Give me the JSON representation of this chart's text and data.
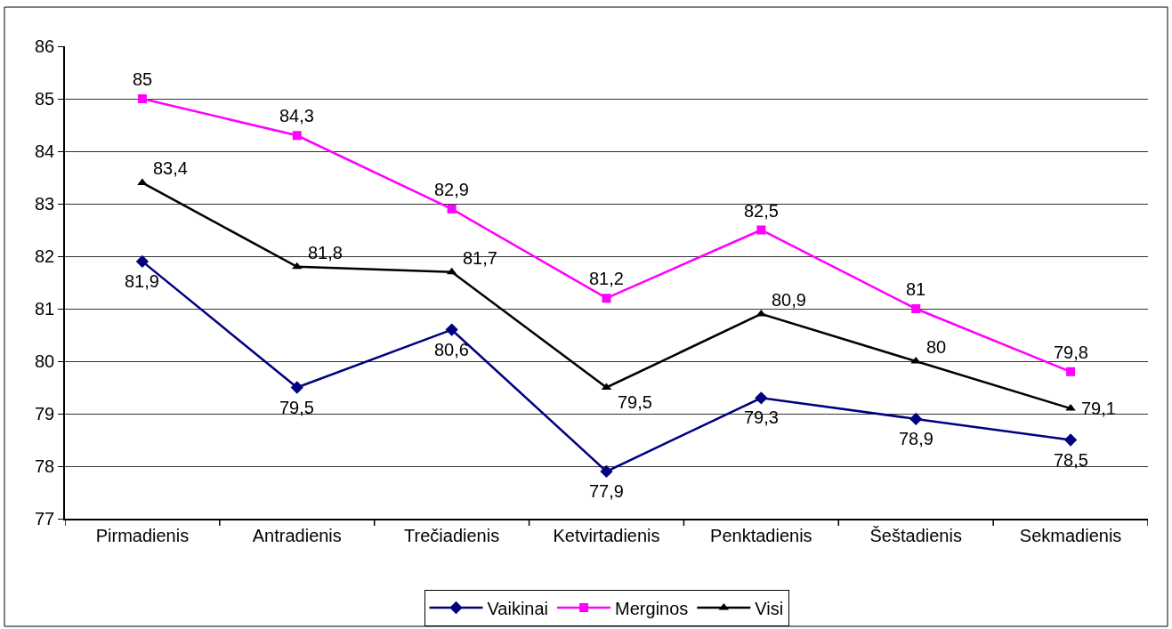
{
  "chart_data": {
    "type": "line",
    "categories": [
      "Pirmadienis",
      "Antradienis",
      "Trečiadienis",
      "Ketvirtadienis",
      "Penktadienis",
      "Šeštadienis",
      "Sekmadienis"
    ],
    "series": [
      {
        "name": "Vaikinai",
        "color": "#000080",
        "marker": "diamond",
        "values": [
          81.9,
          79.5,
          80.6,
          77.9,
          79.3,
          78.9,
          78.5
        ],
        "value_labels": [
          "81,9",
          "79,5",
          "80,6",
          "77,9",
          "79,3",
          "78,9",
          "78,5"
        ]
      },
      {
        "name": "Merginos",
        "color": "#ff00ff",
        "marker": "square",
        "values": [
          85,
          84.3,
          82.9,
          81.2,
          82.5,
          81,
          79.8
        ],
        "value_labels": [
          "85",
          "84,3",
          "82,9",
          "81,2",
          "82,5",
          "81",
          "79,8"
        ]
      },
      {
        "name": "Visi",
        "color": "#000000",
        "marker": "triangle",
        "values": [
          83.4,
          81.8,
          81.7,
          79.5,
          80.9,
          80,
          79.1
        ],
        "value_labels": [
          "83,4",
          "81,8",
          "81,7",
          "79,5",
          "80,9",
          "80",
          "79,1"
        ]
      }
    ],
    "ylim": [
      77,
      86
    ],
    "yticks": [
      77,
      78,
      79,
      80,
      81,
      82,
      83,
      84,
      85,
      86
    ],
    "grid": "y",
    "legend": "bottom",
    "line_style": "solid"
  }
}
